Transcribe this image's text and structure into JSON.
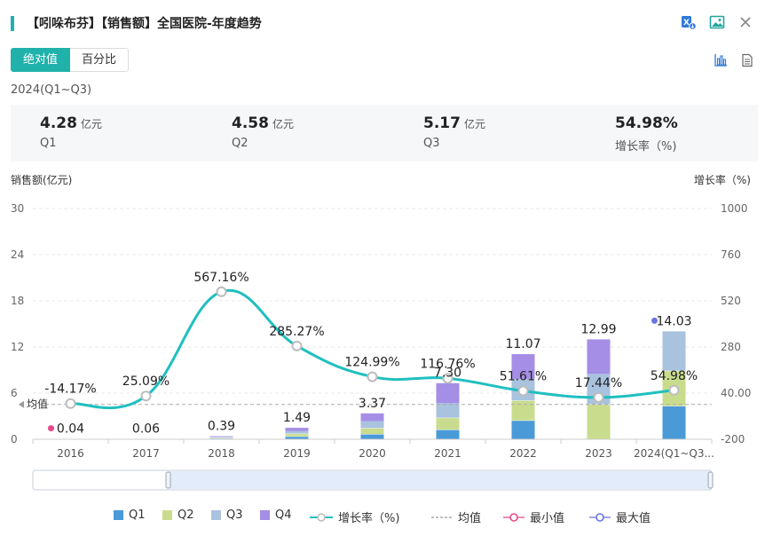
{
  "header": {
    "title": "【吲哚布芬】【销售额】全国医院-年度趋势",
    "icons": [
      "excel-export-icon",
      "image-export-icon",
      "close-icon"
    ]
  },
  "toggle": {
    "absolute": "绝对值",
    "percent": "百分比"
  },
  "period": "2024(Q1~Q3)",
  "summary": [
    {
      "value": "4.28",
      "unit": "亿元",
      "label": "Q1"
    },
    {
      "value": "4.58",
      "unit": "亿元",
      "label": "Q2"
    },
    {
      "value": "5.17",
      "unit": "亿元",
      "label": "Q3"
    },
    {
      "value": "54.98%",
      "unit": "",
      "label": "增长率（%)"
    }
  ],
  "colors": {
    "accent": "#20b2aa",
    "Q1": "#4a9ad8",
    "Q2": "#c9dc8e",
    "Q3": "#a9c2de",
    "Q4": "#a58ee6",
    "growth_line": "#20bfc0",
    "min_marker": "#e8498a",
    "max_marker": "#6b74e0"
  },
  "chart_data": {
    "type": "bar",
    "left_axis_label": "销售额(亿元)",
    "right_axis_label": "增长率（%)",
    "left_ticks": [
      "30",
      "24",
      "18",
      "12",
      "6",
      "0"
    ],
    "right_ticks": [
      "1000",
      "760",
      "520",
      "280",
      "40.00",
      "-200"
    ],
    "ylim_left": [
      0,
      30
    ],
    "ylim_right": [
      -200,
      1000
    ],
    "categories": [
      "2016",
      "2017",
      "2018",
      "2019",
      "2020",
      "2021",
      "2022",
      "2023",
      "2024(Q1~Q3..."
    ],
    "totals": [
      0.04,
      0.06,
      0.39,
      1.49,
      3.37,
      7.3,
      11.07,
      12.99,
      14.03
    ],
    "total_labels": [
      "0.04",
      "0.06",
      "0.39",
      "1.49",
      "3.37",
      "7.30",
      "11.07",
      "12.99",
      "14.03"
    ],
    "series": [
      {
        "name": "Q1",
        "values": [
          0.01,
          0.015,
          0.09,
          0.32,
          0.63,
          1.2,
          2.4,
          0,
          4.28
        ]
      },
      {
        "name": "Q2",
        "values": [
          0.01,
          0.015,
          0.1,
          0.36,
          0.78,
          1.55,
          2.6,
          4.5,
          4.58
        ]
      },
      {
        "name": "Q3",
        "values": [
          0.01,
          0.015,
          0.1,
          0.38,
          0.95,
          1.95,
          2.85,
          4.0,
          5.17
        ]
      },
      {
        "name": "Q4",
        "values": [
          0.01,
          0.015,
          0.1,
          0.43,
          1.01,
          2.6,
          3.22,
          4.49,
          0
        ]
      }
    ],
    "growth": {
      "name": "增长率（%)",
      "values": [
        -14.17,
        25.09,
        567.16,
        285.27,
        124.99,
        116.76,
        51.61,
        17.44,
        54.98
      ],
      "labels": [
        "-14.17%",
        "25.09%",
        "567.16%",
        "285.27%",
        "124.99%",
        "116.76%",
        "51.61%",
        "17.44%",
        "54.98%"
      ]
    },
    "mean": {
      "label": "均值",
      "value": 4.53
    },
    "min_index": 0,
    "max_index": 8,
    "legend": [
      "Q1",
      "Q2",
      "Q3",
      "Q4",
      "增长率（%)",
      "均值",
      "最小值",
      "最大值"
    ]
  }
}
